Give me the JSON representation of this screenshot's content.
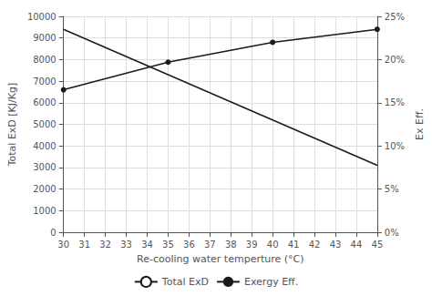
{
  "chart_data": {
    "type": "line",
    "xlabel": "Re-cooling water temperture (°C)",
    "ylabel": "Total ExD [KJ/Kg]",
    "y2label": "Ex Eff.",
    "series": [
      {
        "name": "Total ExD",
        "color": "#1a1a1a",
        "marker": "none",
        "x": [
          30,
          45
        ],
        "values": [
          9400,
          3100
        ]
      },
      {
        "name": "Exergy Eff.",
        "color": "#1a1a1a",
        "marker": "circle",
        "axis": "y2",
        "x": [
          30,
          35,
          40,
          45
        ],
        "values": [
          0.165,
          0.197,
          0.22,
          0.235
        ]
      }
    ],
    "xlim": [
      30,
      45
    ],
    "xticks": [
      30,
      31,
      32,
      33,
      34,
      35,
      36,
      37,
      38,
      39,
      40,
      41,
      42,
      43,
      44,
      45
    ],
    "ylim": [
      0,
      10000
    ],
    "yticks": [
      0,
      1000,
      2000,
      3000,
      4000,
      5000,
      6000,
      7000,
      8000,
      9000,
      10000
    ],
    "y2lim": [
      0,
      0.25
    ],
    "y2ticks": [
      {
        "value": 0,
        "label": "0%"
      },
      {
        "value": 0.05,
        "label": "5%"
      },
      {
        "value": 0.1,
        "label": "10%"
      },
      {
        "value": 0.15,
        "label": "15%"
      },
      {
        "value": 0.2,
        "label": "20%"
      },
      {
        "value": 0.25,
        "label": "25%"
      }
    ],
    "grid": true,
    "legend": "bottom"
  }
}
